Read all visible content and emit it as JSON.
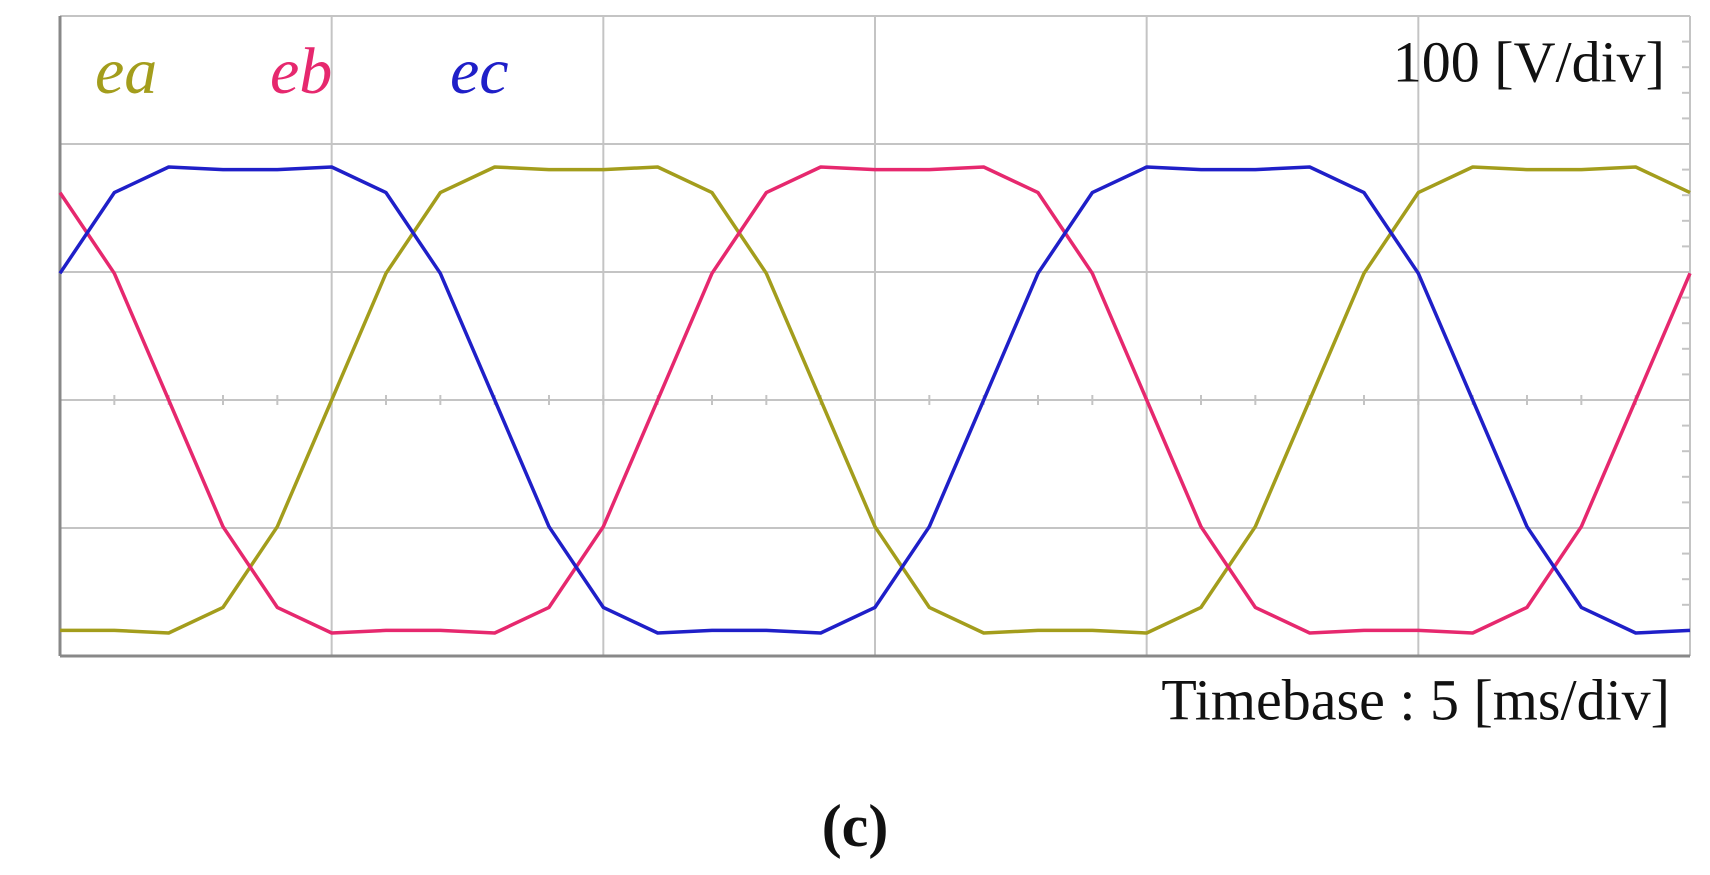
{
  "chart_data": {
    "type": "line",
    "scale_label": "100 [V/div]",
    "x_label": "Timebase : 5 [ms/div]",
    "caption": "(c)",
    "xlim": [
      0,
      30
    ],
    "ylim": [
      -200,
      300
    ],
    "x": [
      0,
      1,
      2,
      3,
      4,
      5,
      6,
      7,
      8,
      9,
      10,
      11,
      12,
      13,
      14,
      15,
      16,
      17,
      18,
      19,
      20,
      21,
      22,
      23,
      24,
      25,
      26,
      27,
      28,
      29,
      30
    ],
    "series": [
      {
        "name": "ea",
        "color": "#a39d1c",
        "values": [
          -180,
          -180,
          -182,
          -162,
          -99,
          0,
          99,
          162,
          182,
          180,
          180,
          182,
          162,
          99,
          0,
          -99,
          -162,
          -182,
          -180,
          -180,
          -182,
          -162,
          -99,
          0,
          99,
          162,
          182,
          180,
          180,
          182,
          162
        ]
      },
      {
        "name": "eb",
        "color": "#e6286e",
        "values": [
          162,
          99,
          0,
          -99,
          -162,
          -182,
          -180,
          -180,
          -182,
          -162,
          -99,
          0,
          99,
          162,
          182,
          180,
          180,
          182,
          162,
          99,
          0,
          -99,
          -162,
          -182,
          -180,
          -180,
          -182,
          -162,
          -99,
          0,
          99
        ]
      },
      {
        "name": "ec",
        "color": "#1f1fc8",
        "values": [
          99,
          162,
          182,
          180,
          180,
          182,
          162,
          99,
          0,
          -99,
          -162,
          -182,
          -180,
          -180,
          -182,
          -162,
          -99,
          0,
          99,
          162,
          182,
          180,
          180,
          182,
          162,
          99,
          0,
          -99,
          -162,
          -182,
          -180
        ]
      }
    ]
  }
}
